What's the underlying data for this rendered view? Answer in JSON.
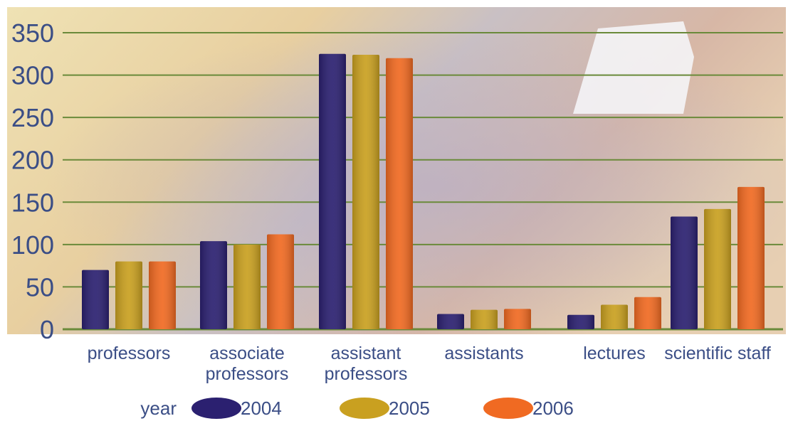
{
  "chart_data": {
    "type": "bar",
    "categories": [
      [
        "professors"
      ],
      [
        "associate",
        "professors"
      ],
      [
        "assistant",
        "professors"
      ],
      [
        "assistants"
      ],
      [
        "lectures"
      ],
      [
        "scientific staff"
      ]
    ],
    "series": [
      {
        "name": "2004",
        "color": "#2b2070",
        "values": [
          70,
          104,
          325,
          18,
          17,
          133
        ]
      },
      {
        "name": "2005",
        "color": "#c9a020",
        "values": [
          80,
          100,
          324,
          23,
          29,
          142
        ]
      },
      {
        "name": "2006",
        "color": "#f06a22",
        "values": [
          80,
          112,
          320,
          24,
          38,
          168
        ]
      }
    ],
    "ylim": [
      0,
      350
    ],
    "yticks": [
      0,
      50,
      100,
      150,
      200,
      250,
      300,
      350
    ],
    "grid": true,
    "legend": {
      "title": "year",
      "placement": "bottom"
    },
    "colors": {
      "gridline": "#6a8a3a",
      "text": "#3b4e86",
      "background": "#e6d6a8"
    }
  }
}
